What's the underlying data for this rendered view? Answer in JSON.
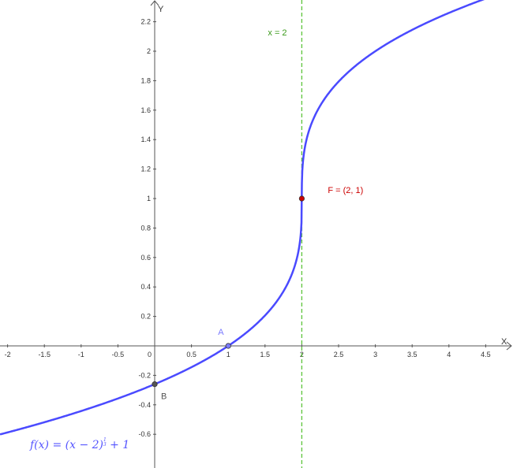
{
  "chart_data": {
    "type": "line",
    "title": "",
    "xlabel": "X",
    "ylabel": "Y",
    "xlim": [
      -2.1,
      4.8
    ],
    "ylim": [
      -0.82,
      2.35
    ],
    "x_ticks": [
      -2,
      -1.5,
      -1,
      -0.5,
      0.5,
      1,
      1.5,
      2,
      2.5,
      3,
      3.5,
      4,
      4.5
    ],
    "x_tick_labels": [
      "-2",
      "-1.5",
      "-1",
      "-0.5",
      "0.5",
      "1",
      "1.5",
      "2",
      "2.5",
      "3",
      "3.5",
      "4",
      "4.5"
    ],
    "y_ticks": [
      -0.6,
      -0.4,
      -0.2,
      0.2,
      0.4,
      0.6,
      0.8,
      1,
      1.2,
      1.4,
      1.6,
      1.8,
      2,
      2.2
    ],
    "y_tick_labels": [
      "-0.6",
      "-0.4",
      "-0.2",
      "0.2",
      "0.4",
      "0.6",
      "0.8",
      "1",
      "1.2",
      "1.4",
      "1.6",
      "1.8",
      "2",
      "2.2"
    ],
    "origin_label": "0",
    "series": [
      {
        "name": "f",
        "function": "(x-2)^(1/3)+1",
        "label": "f(x) = (x − 2)",
        "exponent_num": "1",
        "exponent_den": "3",
        "label_tail": " + 1",
        "color": "#4a4aff"
      }
    ],
    "asymptote": {
      "x": 2,
      "label": "x = 2",
      "color": "#3a9a1a"
    },
    "points": [
      {
        "name": "A",
        "x": 1,
        "y": 0,
        "label": "A",
        "color": "#7b7bff"
      },
      {
        "name": "B",
        "x": 0,
        "y": -0.26,
        "label": "B",
        "color": "#555555"
      },
      {
        "name": "F",
        "x": 2,
        "y": 1,
        "label": "F = (2, 1)",
        "color": "#cc0000"
      }
    ],
    "grid": false
  }
}
